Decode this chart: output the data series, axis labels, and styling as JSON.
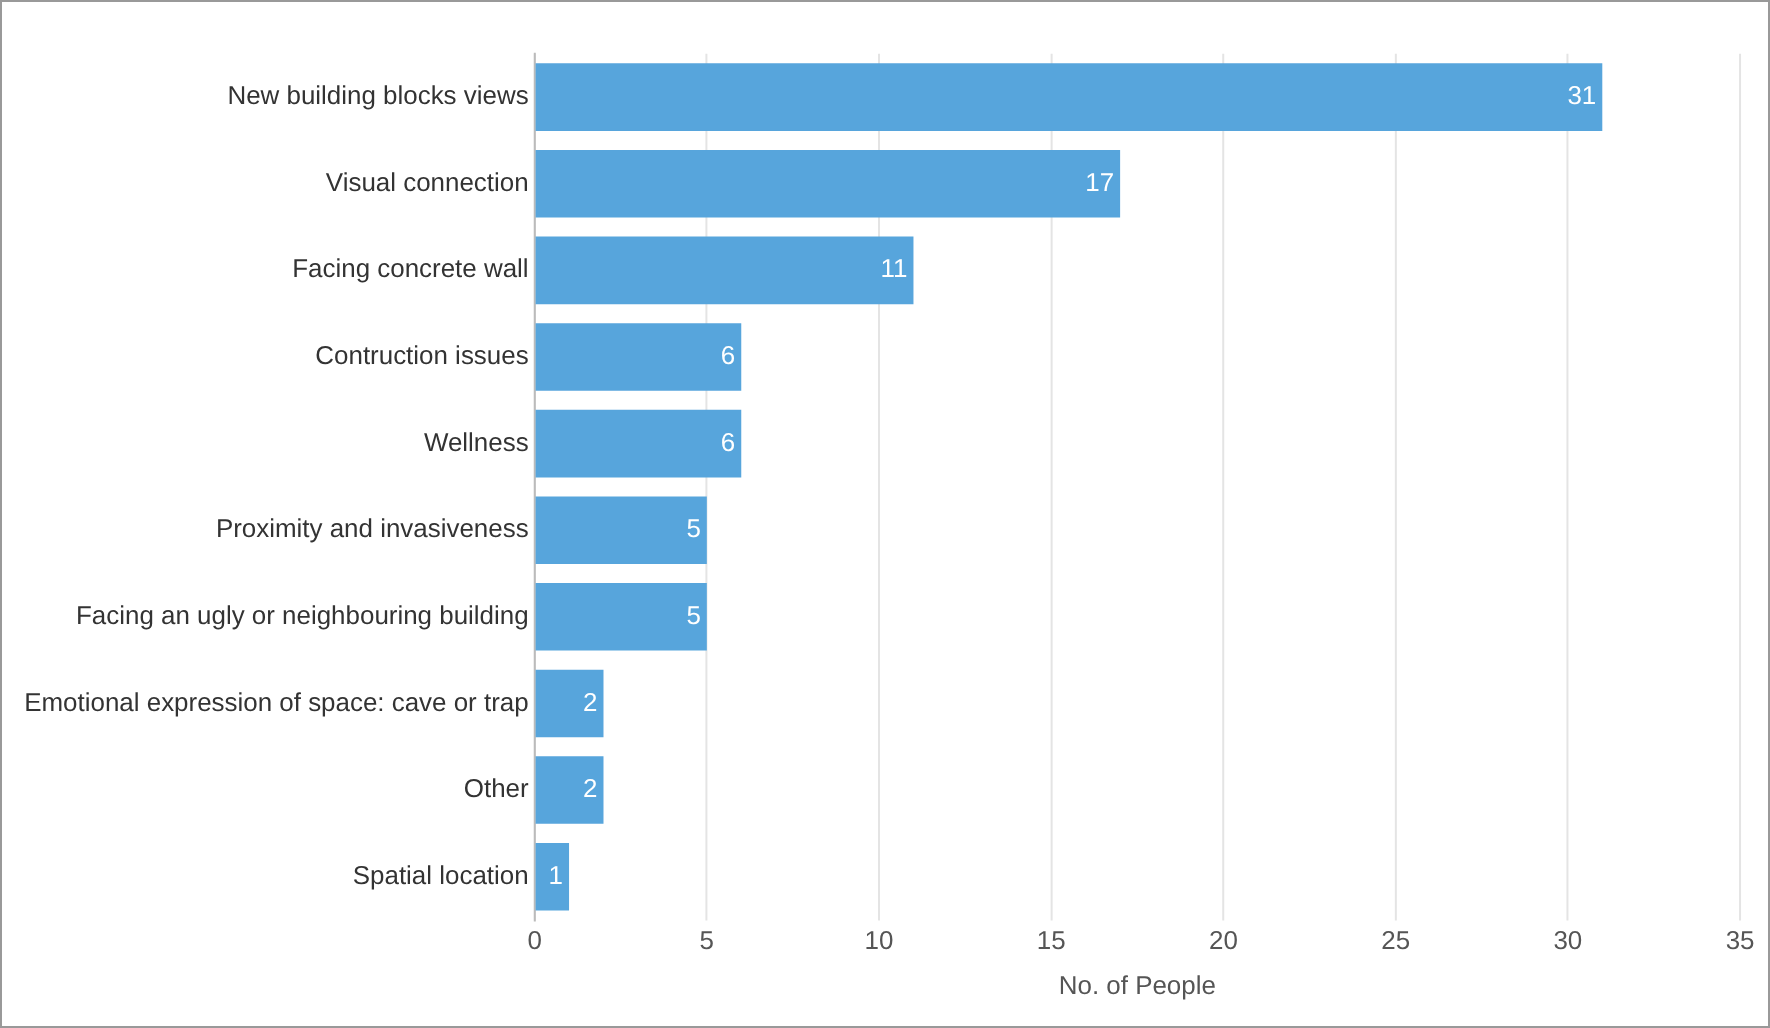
{
  "chart_data": {
    "type": "bar",
    "orientation": "horizontal",
    "xlabel": "No. of People",
    "categories": [
      "New building blocks views",
      "Visual connection",
      "Facing concrete wall",
      "Contruction issues",
      "Wellness",
      "Proximity and invasiveness",
      "Facing an ugly or neighbouring building",
      "Emotional expression of space: cave or trap",
      "Other",
      "Spatial location"
    ],
    "values": [
      31,
      17,
      11,
      6,
      6,
      5,
      5,
      2,
      2,
      1
    ],
    "color": "#57a5dc",
    "xlim": [
      0,
      35
    ],
    "xticks": [
      0,
      5,
      10,
      15,
      20,
      25,
      30,
      35
    ],
    "grid": "x",
    "legend": false,
    "data_labels": true
  }
}
